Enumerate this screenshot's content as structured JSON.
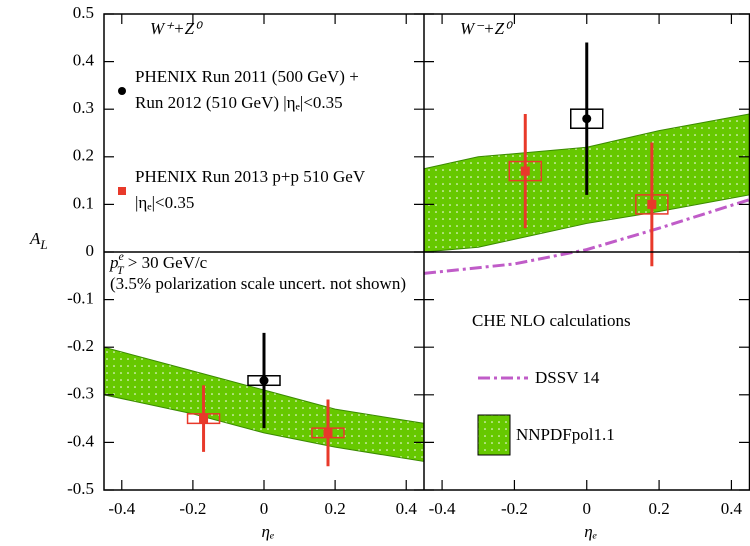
{
  "chart_data": {
    "type": "errorbar",
    "ylabel": {
      "text": "A",
      "sub": "L"
    },
    "xlabel": "ηₑ",
    "ylim": [
      -0.5,
      0.5
    ],
    "yticks": [
      -0.5,
      -0.4,
      -0.3,
      -0.2,
      -0.1,
      0,
      0.1,
      0.2,
      0.3,
      0.4,
      0.5
    ],
    "xlim": [
      -0.45,
      0.45
    ],
    "xticks": [
      -0.4,
      -0.2,
      0,
      0.2,
      0.4
    ],
    "panels": [
      {
        "title": "W⁺+Z⁰"
      },
      {
        "title": "W⁻+Z⁰"
      }
    ],
    "annotation": {
      "text": "p",
      "sub": "T",
      "sup": "e",
      "rest": " > 30 GeV/c"
    },
    "note": "(3.5% polarization scale uncert. not shown)",
    "legend_title": "CHE NLO calculations",
    "series": [
      {
        "name": "PHENIX Run 2011 (500 GeV) +\nRun 2012 (510 GeV) |ηₑ|<0.35",
        "color": "#000000",
        "style": "points",
        "x": [
          [
            0
          ],
          [
            0
          ]
        ],
        "values": [
          [
            -0.27
          ],
          [
            0.28
          ]
        ],
        "errors": [
          [
            0.1
          ],
          [
            0.16
          ]
        ],
        "syst": [
          [
            0.01
          ],
          [
            0.02
          ]
        ]
      },
      {
        "name": "PHENIX Run 2013 p+p 510 GeV\n|ηₑ|<0.35",
        "color": "#e8392a",
        "style": "points",
        "x": [
          [
            -0.17,
            0.18
          ],
          [
            -0.17,
            0.18
          ]
        ],
        "values": [
          [
            -0.35,
            -0.38
          ],
          [
            0.17,
            0.1
          ]
        ],
        "errors": [
          [
            0.07,
            0.07
          ],
          [
            0.12,
            0.13
          ]
        ],
        "syst": [
          [
            0.01,
            0.01
          ],
          [
            0.02,
            0.02
          ]
        ]
      },
      {
        "name": "DSSV 14",
        "color": "#c05cc8",
        "style": "line",
        "x": [
          [
            -0.45,
            -0.2,
            0,
            0.2,
            0.45
          ],
          [
            -0.45,
            -0.2,
            0,
            0.2,
            0.45
          ]
        ],
        "values": [
          [
            -0.235,
            -0.27,
            -0.31,
            -0.35,
            -0.39
          ],
          [
            -0.045,
            -0.025,
            0.005,
            0.05,
            0.11
          ]
        ]
      },
      {
        "name": "NNPDFpol1.1",
        "color": "#66c800",
        "style": "band",
        "x": [
          [
            -0.45,
            -0.2,
            0,
            0.2,
            0.45
          ],
          [
            -0.45,
            -0.3,
            0,
            0.2,
            0.45
          ]
        ],
        "upper": [
          [
            -0.2,
            -0.25,
            -0.29,
            -0.33,
            -0.36
          ],
          [
            0.175,
            0.2,
            0.22,
            0.255,
            0.29
          ]
        ],
        "lower": [
          [
            -0.3,
            -0.34,
            -0.38,
            -0.41,
            -0.44
          ],
          [
            0.0,
            0.01,
            0.06,
            0.085,
            0.12
          ]
        ]
      }
    ]
  }
}
